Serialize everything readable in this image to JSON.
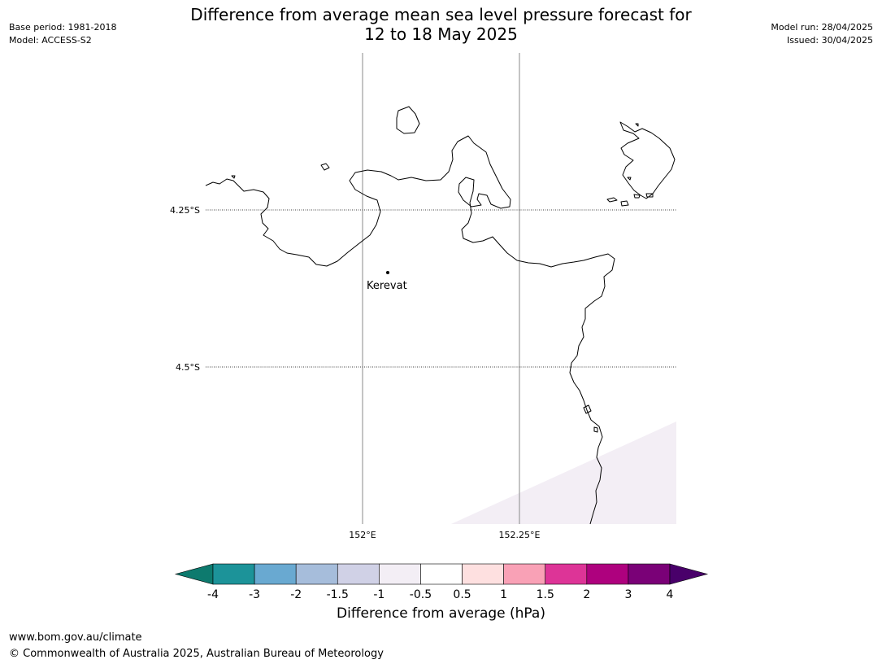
{
  "header": {
    "title_line1": "Difference from average mean sea level pressure forecast for",
    "title_line2": "12 to 18 May 2025",
    "base_period": "Base period: 1981-2018",
    "model": "Model: ACCESS-S2",
    "model_run": "Model run: 28/04/2025",
    "issued": "Issued: 30/04/2025"
  },
  "map": {
    "lat_labels": [
      "4.25°S",
      "4.5°S"
    ],
    "lon_labels": [
      "152°E",
      "152.25°E"
    ],
    "place": "Kerevat",
    "anomaly_shading_color": "#f3eef5"
  },
  "colorbar": {
    "label": "Difference from average (hPa)",
    "ticks": [
      "-4",
      "-3",
      "-2",
      "-1.5",
      "-1",
      "-0.5",
      "0.5",
      "1",
      "1.5",
      "2",
      "3",
      "4"
    ],
    "colors": [
      "#0d7a6e",
      "#1c9399",
      "#69a9d1",
      "#a6bddb",
      "#d0d1e6",
      "#f3eef5",
      "#ffffff",
      "#fee0e0",
      "#f9a1b6",
      "#dd3497",
      "#ae017e",
      "#7a0177",
      "#49006a"
    ]
  },
  "footer": {
    "url": "www.bom.gov.au/climate",
    "copyright": "© Commonwealth of Australia 2025, Australian Bureau of Meteorology"
  }
}
